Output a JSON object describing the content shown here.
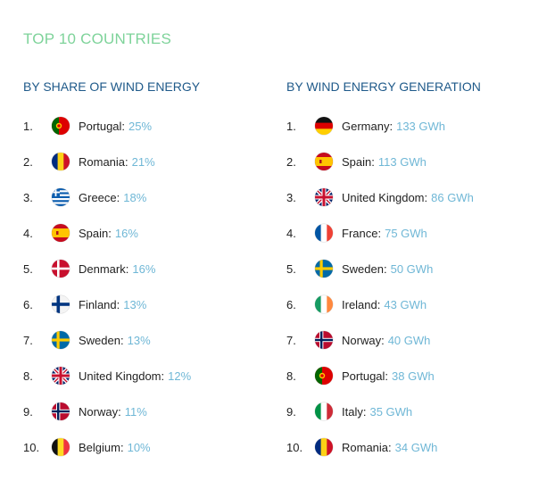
{
  "title": "TOP 10 COUNTRIES",
  "columns": [
    {
      "heading": "BY SHARE OF WIND ENERGY",
      "items": [
        {
          "rank": "1.",
          "name": "Portugal",
          "value": "25%",
          "flag": "portugal-flag-icon"
        },
        {
          "rank": "2.",
          "name": "Romania",
          "value": "21%",
          "flag": "romania-flag-icon"
        },
        {
          "rank": "3.",
          "name": "Greece",
          "value": "18%",
          "flag": "greece-flag-icon"
        },
        {
          "rank": "4.",
          "name": "Spain",
          "value": "16%",
          "flag": "spain-flag-icon"
        },
        {
          "rank": "5.",
          "name": "Denmark",
          "value": "16%",
          "flag": "denmark-flag-icon"
        },
        {
          "rank": "6.",
          "name": "Finland",
          "value": "13%",
          "flag": "finland-flag-icon"
        },
        {
          "rank": "7.",
          "name": "Sweden",
          "value": "13%",
          "flag": "sweden-flag-icon"
        },
        {
          "rank": "8.",
          "name": "United Kingdom",
          "value": "12%",
          "flag": "uk-flag-icon"
        },
        {
          "rank": "9.",
          "name": "Norway",
          "value": "11%",
          "flag": "norway-flag-icon"
        },
        {
          "rank": "10.",
          "name": "Belgium",
          "value": "10%",
          "flag": "belgium-flag-icon"
        }
      ]
    },
    {
      "heading": "BY WIND ENERGY GENERATION",
      "items": [
        {
          "rank": "1.",
          "name": "Germany",
          "value": "133 GWh",
          "flag": "germany-flag-icon"
        },
        {
          "rank": "2.",
          "name": "Spain",
          "value": "113 GWh",
          "flag": "spain-flag-icon"
        },
        {
          "rank": "3.",
          "name": "United Kingdom",
          "value": "86 GWh",
          "flag": "uk-flag-icon"
        },
        {
          "rank": "4.",
          "name": "France",
          "value": "75 GWh",
          "flag": "france-flag-icon"
        },
        {
          "rank": "5.",
          "name": "Sweden",
          "value": "50 GWh",
          "flag": "sweden-flag-icon"
        },
        {
          "rank": "6.",
          "name": "Ireland",
          "value": "43 GWh",
          "flag": "ireland-flag-icon"
        },
        {
          "rank": "7.",
          "name": "Norway",
          "value": "40 GWh",
          "flag": "norway-flag-icon"
        },
        {
          "rank": "8.",
          "name": "Portugal",
          "value": "38 GWh",
          "flag": "portugal-flag-icon"
        },
        {
          "rank": "9.",
          "name": "Italy",
          "value": "35 GWh",
          "flag": "italy-flag-icon"
        },
        {
          "rank": "10.",
          "name": "Romania",
          "value": "34 GWh",
          "flag": "romania-flag-icon"
        }
      ]
    }
  ],
  "colors": {
    "title": "#7ed39a",
    "heading": "#1f5a8a",
    "value": "#6fb7d6"
  }
}
